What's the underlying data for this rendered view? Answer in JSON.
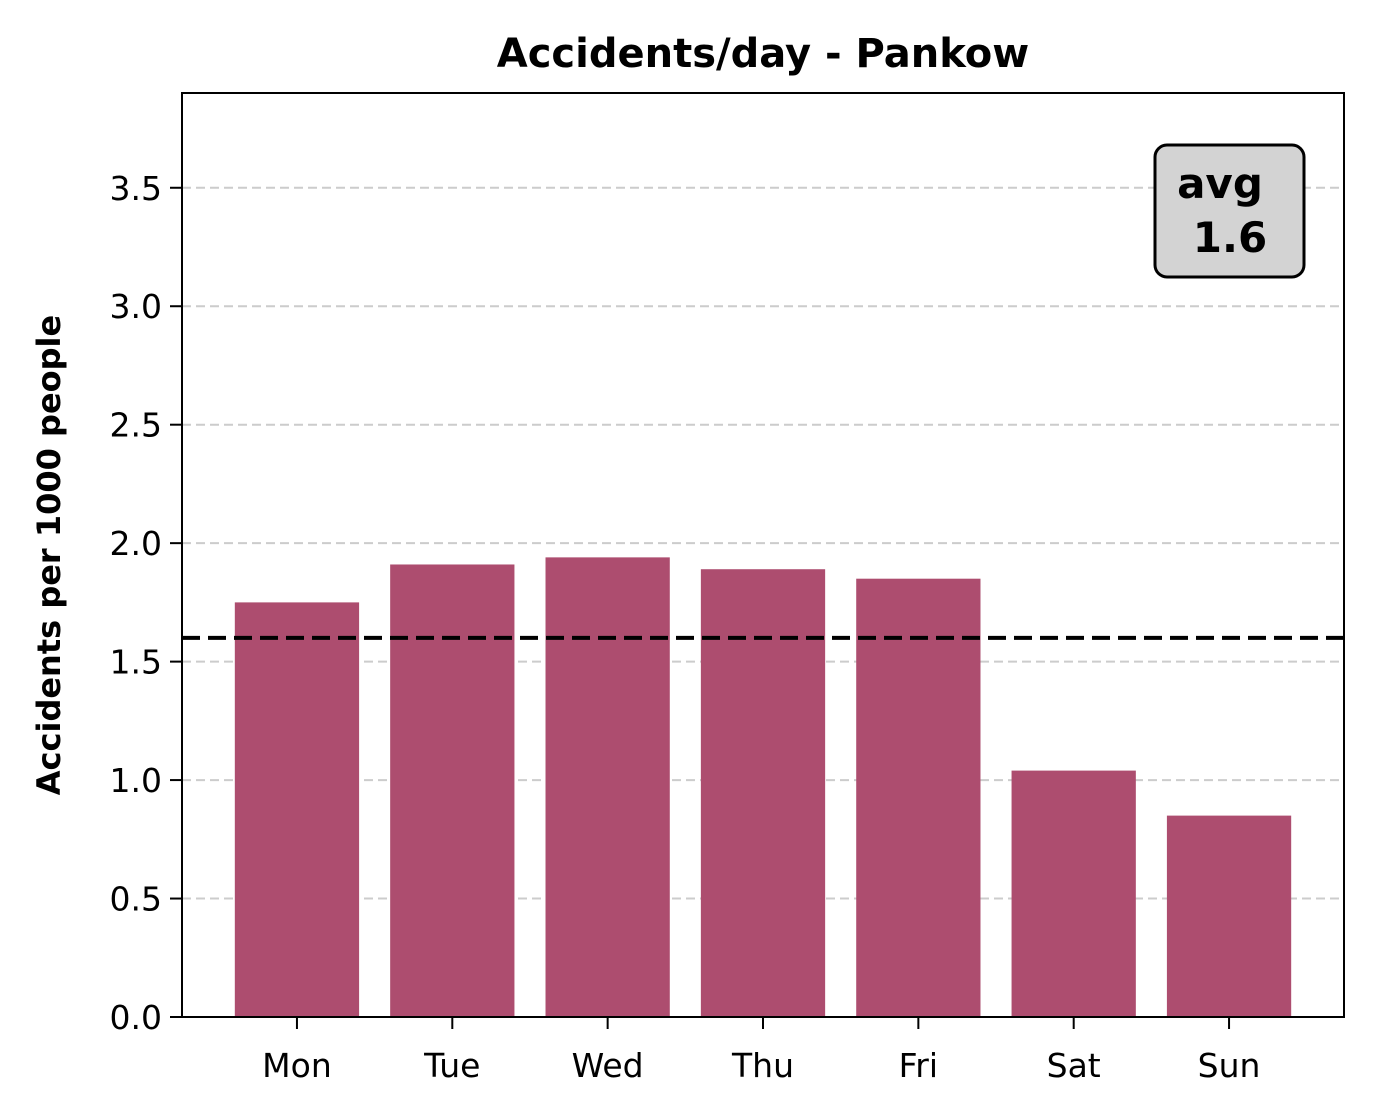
{
  "chart_data": {
    "type": "bar",
    "title": "Accidents/day - Pankow",
    "xlabel": "",
    "ylabel": "Accidents per 1000 people",
    "categories": [
      "Mon",
      "Tue",
      "Wed",
      "Thu",
      "Fri",
      "Sat",
      "Sun"
    ],
    "values": [
      1.75,
      1.91,
      1.94,
      1.89,
      1.85,
      1.04,
      0.85
    ],
    "ylim": [
      0,
      3.9
    ],
    "yticks": [
      "0.0",
      "0.5",
      "1.0",
      "1.5",
      "2.0",
      "2.5",
      "3.0",
      "3.5"
    ],
    "grid": "y-dashed",
    "average": {
      "value": 1.6,
      "label_line1": "avg",
      "label_line2": "1.6",
      "placement": "top-right"
    },
    "colors": {
      "bar": "#ad4d6f",
      "grid": "#cccccc",
      "average_line": "#000000",
      "annotation_box": "#d3d3d3"
    }
  }
}
